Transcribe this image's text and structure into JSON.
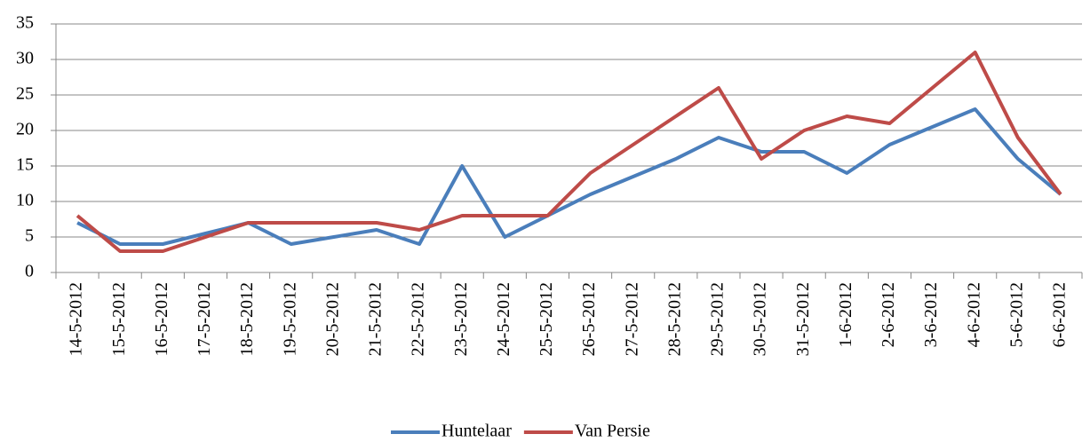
{
  "chart_data": {
    "type": "line",
    "categories": [
      "14-5-2012",
      "15-5-2012",
      "16-5-2012",
      "17-5-2012",
      "18-5-2012",
      "19-5-2012",
      "20-5-2012",
      "21-5-2012",
      "22-5-2012",
      "23-5-2012",
      "24-5-2012",
      "25-5-2012",
      "26-5-2012",
      "27-5-2012",
      "28-5-2012",
      "29-5-2012",
      "30-5-2012",
      "31-5-2012",
      "1-6-2012",
      "2-6-2012",
      "3-6-2012",
      "4-6-2012",
      "5-6-2012",
      "6-6-2012"
    ],
    "series": [
      {
        "name": "Huntelaar",
        "color": "#4a7ebb",
        "values": [
          7,
          4,
          4,
          5.5,
          7,
          4,
          5,
          6,
          4,
          15,
          5,
          8,
          11,
          13.5,
          16,
          19,
          17,
          17,
          14,
          18,
          20.5,
          23,
          16,
          11
        ]
      },
      {
        "name": "Van Persie",
        "color": "#be4b48",
        "values": [
          8,
          3,
          3,
          5,
          7,
          7,
          7,
          7,
          6,
          8,
          8,
          8,
          14,
          18,
          22,
          26,
          16,
          20,
          22,
          21,
          26,
          31,
          19,
          11
        ]
      }
    ],
    "ylim": [
      0,
      35
    ],
    "yticks": [
      0,
      5,
      10,
      15,
      20,
      25,
      30,
      35
    ],
    "grid": true,
    "legend": "bottom"
  }
}
